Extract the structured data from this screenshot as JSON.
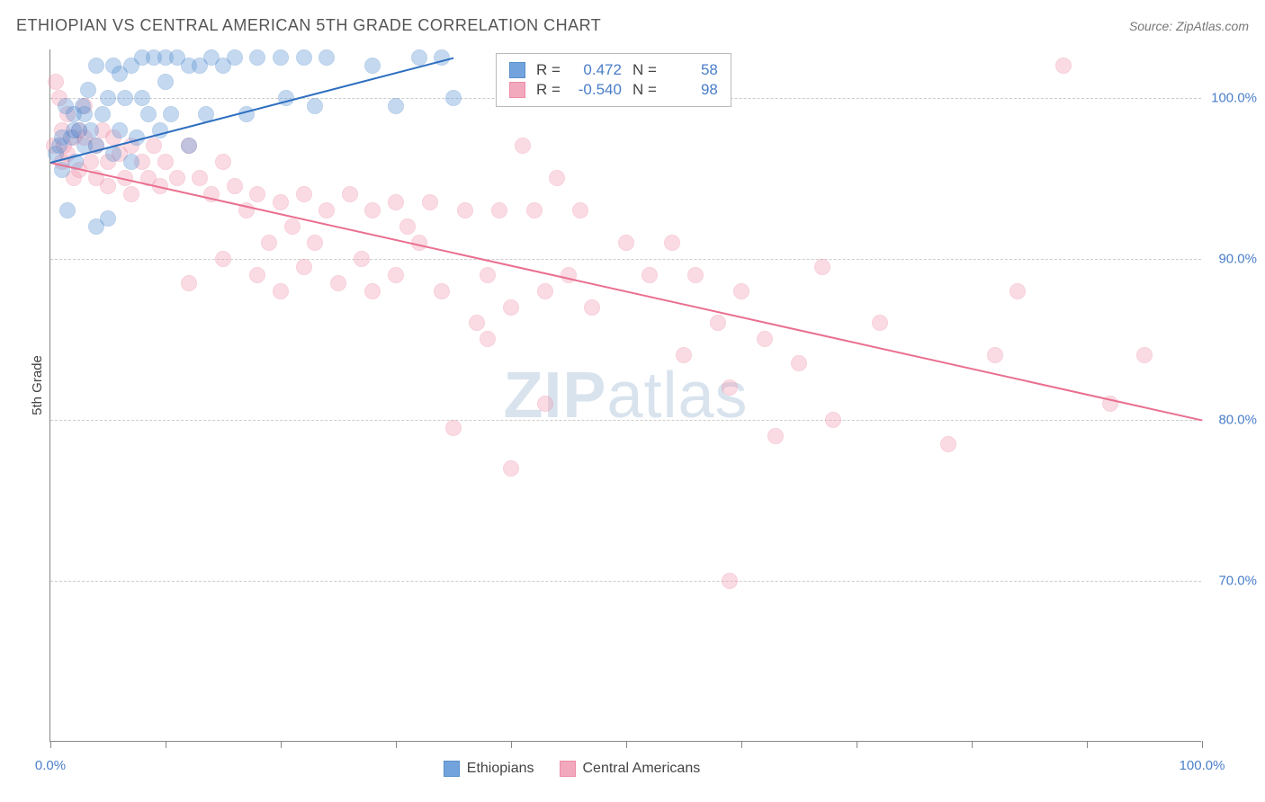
{
  "chart": {
    "type": "scatter",
    "title": "ETHIOPIAN VS CENTRAL AMERICAN 5TH GRADE CORRELATION CHART",
    "source": "Source: ZipAtlas.com",
    "ylabel": "5th Grade",
    "watermark_bold": "ZIP",
    "watermark_rest": "atlas",
    "background_color": "#ffffff",
    "grid_color": "#cccccc",
    "axis_color": "#888888",
    "tick_label_color": "#4a7ec9",
    "xlim": [
      0,
      100
    ],
    "ylim": [
      60,
      103
    ],
    "xticks": [
      0,
      10,
      20,
      30,
      40,
      50,
      60,
      70,
      80,
      90,
      100
    ],
    "xtick_labels": {
      "0": "0.0%",
      "100": "100.0%"
    },
    "yticks": [
      70,
      80,
      90,
      100
    ],
    "ytick_labels": {
      "70": "70.0%",
      "80": "80.0%",
      "90": "90.0%",
      "100": "100.0%"
    },
    "marker_radius": 9,
    "marker_fill_opacity": 0.35,
    "marker_stroke_width": 1.5,
    "series": {
      "ethiopians": {
        "label": "Ethiopians",
        "color": "#5a94d6",
        "stroke": "#3c7cc4",
        "R": "0.472",
        "N": "58",
        "trend": {
          "x1": 0,
          "y1": 96,
          "x2": 35,
          "y2": 102.5,
          "color": "#2e6fc0",
          "width": 2
        },
        "points": [
          [
            0.5,
            96.5
          ],
          [
            0.8,
            97
          ],
          [
            1,
            95.5
          ],
          [
            1,
            97.5
          ],
          [
            1.3,
            99.5
          ],
          [
            1.5,
            93
          ],
          [
            1.8,
            97.5
          ],
          [
            2,
            98
          ],
          [
            2,
            99
          ],
          [
            2.2,
            96
          ],
          [
            2.5,
            98
          ],
          [
            2.8,
            99.5
          ],
          [
            3,
            97
          ],
          [
            3,
            99
          ],
          [
            3.3,
            100.5
          ],
          [
            3.5,
            98
          ],
          [
            4,
            92
          ],
          [
            4,
            97
          ],
          [
            4,
            102
          ],
          [
            4.5,
            99
          ],
          [
            5,
            100
          ],
          [
            5,
            92.5
          ],
          [
            5.5,
            96.5
          ],
          [
            5.5,
            102
          ],
          [
            6,
            98
          ],
          [
            6,
            101.5
          ],
          [
            6.5,
            100
          ],
          [
            7,
            96
          ],
          [
            7,
            102
          ],
          [
            7.5,
            97.5
          ],
          [
            8,
            100
          ],
          [
            8,
            102.5
          ],
          [
            8.5,
            99
          ],
          [
            9,
            102.5
          ],
          [
            9.5,
            98
          ],
          [
            10,
            101
          ],
          [
            10,
            102.5
          ],
          [
            10.5,
            99
          ],
          [
            11,
            102.5
          ],
          [
            12,
            102
          ],
          [
            12,
            97
          ],
          [
            13,
            102
          ],
          [
            13.5,
            99
          ],
          [
            14,
            102.5
          ],
          [
            15,
            102
          ],
          [
            16,
            102.5
          ],
          [
            17,
            99
          ],
          [
            18,
            102.5
          ],
          [
            20,
            102.5
          ],
          [
            20.5,
            100
          ],
          [
            22,
            102.5
          ],
          [
            23,
            99.5
          ],
          [
            24,
            102.5
          ],
          [
            28,
            102
          ],
          [
            30,
            99.5
          ],
          [
            32,
            102.5
          ],
          [
            34,
            102.5
          ],
          [
            35,
            100
          ]
        ]
      },
      "central_americans": {
        "label": "Central Americans",
        "color": "#f29bb2",
        "stroke": "#ea7a98",
        "R": "-0.540",
        "N": "98",
        "trend": {
          "x1": 0,
          "y1": 96,
          "x2": 100,
          "y2": 80,
          "color": "#ea6f8f",
          "width": 2
        },
        "points": [
          [
            0.3,
            97
          ],
          [
            0.5,
            101
          ],
          [
            0.8,
            100
          ],
          [
            1,
            96
          ],
          [
            1,
            98
          ],
          [
            1.2,
            97
          ],
          [
            1.5,
            96.5
          ],
          [
            1.5,
            99
          ],
          [
            2,
            95
          ],
          [
            2,
            97.5
          ],
          [
            2.5,
            98
          ],
          [
            2.5,
            95.5
          ],
          [
            3,
            97.5
          ],
          [
            3,
            99.5
          ],
          [
            3.5,
            96
          ],
          [
            4,
            97
          ],
          [
            4,
            95
          ],
          [
            4.5,
            98
          ],
          [
            5,
            96
          ],
          [
            5,
            94.5
          ],
          [
            5.5,
            97.5
          ],
          [
            6,
            96.5
          ],
          [
            6.5,
            95
          ],
          [
            7,
            97
          ],
          [
            7,
            94
          ],
          [
            8,
            96
          ],
          [
            8.5,
            95
          ],
          [
            9,
            97
          ],
          [
            9.5,
            94.5
          ],
          [
            10,
            96
          ],
          [
            11,
            95
          ],
          [
            12,
            97
          ],
          [
            12,
            88.5
          ],
          [
            13,
            95
          ],
          [
            14,
            94
          ],
          [
            15,
            96
          ],
          [
            15,
            90
          ],
          [
            16,
            94.5
          ],
          [
            17,
            93
          ],
          [
            18,
            94
          ],
          [
            18,
            89
          ],
          [
            19,
            91
          ],
          [
            20,
            93.5
          ],
          [
            20,
            88
          ],
          [
            21,
            92
          ],
          [
            22,
            94
          ],
          [
            22,
            89.5
          ],
          [
            23,
            91
          ],
          [
            24,
            93
          ],
          [
            25,
            88.5
          ],
          [
            26,
            94
          ],
          [
            27,
            90
          ],
          [
            28,
            93
          ],
          [
            28,
            88
          ],
          [
            30,
            93.5
          ],
          [
            30,
            89
          ],
          [
            31,
            92
          ],
          [
            32,
            91
          ],
          [
            33,
            93.5
          ],
          [
            34,
            88
          ],
          [
            35,
            79.5
          ],
          [
            36,
            93
          ],
          [
            37,
            86
          ],
          [
            38,
            89
          ],
          [
            38,
            85
          ],
          [
            39,
            93
          ],
          [
            40,
            87
          ],
          [
            40,
            77
          ],
          [
            41,
            97
          ],
          [
            42,
            93
          ],
          [
            43,
            88
          ],
          [
            43,
            81
          ],
          [
            44,
            95
          ],
          [
            45,
            89
          ],
          [
            46,
            93
          ],
          [
            47,
            87
          ],
          [
            50,
            91
          ],
          [
            52,
            89
          ],
          [
            54,
            91
          ],
          [
            55,
            84
          ],
          [
            56,
            89
          ],
          [
            57,
            100.5
          ],
          [
            58,
            86
          ],
          [
            59,
            82
          ],
          [
            59,
            70
          ],
          [
            60,
            88
          ],
          [
            62,
            85
          ],
          [
            63,
            79
          ],
          [
            65,
            83.5
          ],
          [
            67,
            89.5
          ],
          [
            68,
            80
          ],
          [
            72,
            86
          ],
          [
            78,
            78.5
          ],
          [
            82,
            84
          ],
          [
            84,
            88
          ],
          [
            88,
            102
          ],
          [
            92,
            81
          ],
          [
            95,
            84
          ]
        ]
      }
    }
  }
}
